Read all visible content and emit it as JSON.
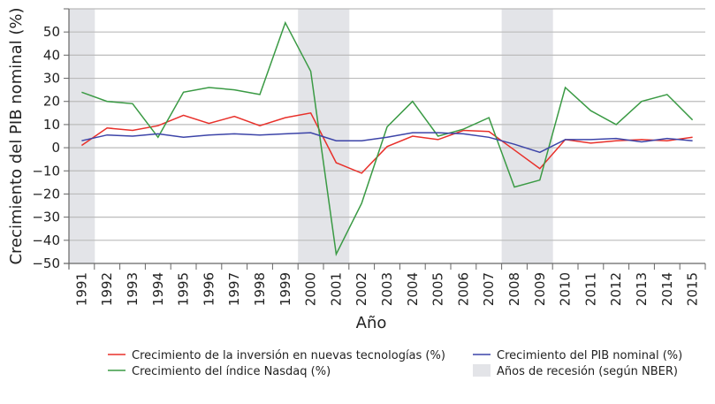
{
  "chart_data": {
    "type": "line",
    "xlabel": "Año",
    "ylabel": "Crecimiento del PIB nominal (%)",
    "ylim": [
      -50,
      60
    ],
    "yticks": [
      -50,
      -40,
      -30,
      -20,
      -10,
      0,
      10,
      20,
      30,
      40,
      50
    ],
    "grid": true,
    "legend_placement": "bottom",
    "categories": [
      "1991",
      "1992",
      "1993",
      "1994",
      "1995",
      "1996",
      "1997",
      "1998",
      "1999",
      "2000",
      "2001",
      "2002",
      "2003",
      "2004",
      "2005",
      "2006",
      "2007",
      "2008",
      "2009",
      "2010",
      "2011",
      "2012",
      "2013",
      "2014",
      "2015"
    ],
    "series": [
      {
        "name": "Crecimiento de la inversión en nuevas tecnologías (%)",
        "color": "#e8302a",
        "values": [
          1,
          8.5,
          7.5,
          9.5,
          14,
          10.5,
          13.5,
          9.5,
          13,
          15,
          -6.5,
          -11,
          0.5,
          5,
          3.5,
          7.5,
          7,
          -1,
          -9,
          3.5,
          2,
          3,
          3.5,
          3,
          4.5
        ]
      },
      {
        "name": "Crecimiento del índice Nasdaq (%)",
        "color": "#3a9a44",
        "values": [
          24,
          20,
          19,
          4.5,
          24,
          26,
          25,
          23,
          54,
          33,
          -46,
          -24,
          9,
          20,
          5,
          8,
          13,
          -17,
          -14,
          26,
          16,
          10,
          20,
          23,
          12
        ]
      },
      {
        "name": "Crecimiento del PIB nominal (%)",
        "color": "#3c44a8",
        "values": [
          3,
          5.5,
          5,
          6,
          4.5,
          5.5,
          6,
          5.5,
          6,
          6.5,
          3,
          3,
          4.5,
          6.5,
          6.5,
          6,
          4.5,
          1.5,
          -2,
          3.5,
          3.5,
          4,
          2.5,
          4,
          3
        ]
      }
    ],
    "recession": {
      "name": "Años de recesión (según NBER)",
      "color": "#e3e4e8",
      "years": [
        "1991",
        "2000",
        "2001",
        "2008",
        "2009"
      ]
    }
  }
}
